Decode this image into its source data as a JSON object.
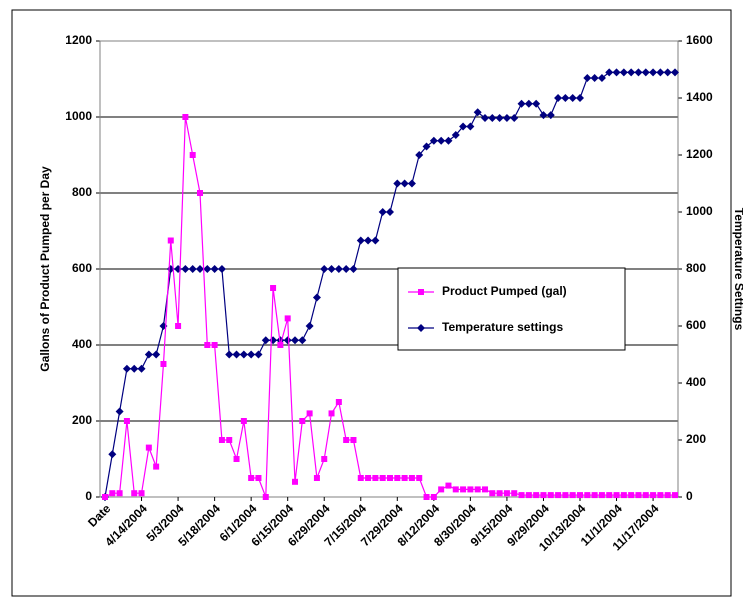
{
  "chart_data": {
    "type": "line",
    "y_label": "Gallons of Product Pumped per  Day",
    "y2_label": "Temperature Settings",
    "categories": [
      "Date",
      null,
      null,
      null,
      null,
      "4/14/2004",
      null,
      null,
      null,
      null,
      "5/3/2004",
      null,
      null,
      null,
      null,
      "5/18/2004",
      null,
      null,
      null,
      null,
      "6/1/2004",
      null,
      null,
      null,
      null,
      "6/15/2004",
      null,
      null,
      null,
      null,
      "6/29/2004",
      null,
      null,
      null,
      null,
      "7/15/2004",
      null,
      null,
      null,
      null,
      "7/29/2004",
      null,
      null,
      null,
      null,
      "8/12/2004",
      null,
      null,
      null,
      null,
      "8/30/2004",
      null,
      null,
      null,
      null,
      "9/15/2004",
      null,
      null,
      null,
      null,
      "9/29/2004",
      null,
      null,
      null,
      null,
      "10/13/2004",
      null,
      null,
      null,
      null,
      "11/1/2004",
      null,
      null,
      null,
      null,
      "11/17/2004",
      null,
      null,
      null
    ],
    "series": [
      {
        "name": "Product Pumped (gal)",
        "color": "#ff00ff",
        "marker": "square",
        "values": [
          0,
          10,
          10,
          200,
          10,
          10,
          130,
          80,
          350,
          675,
          450,
          1000,
          900,
          800,
          400,
          400,
          150,
          150,
          100,
          200,
          50,
          50,
          0,
          550,
          400,
          470,
          40,
          200,
          220,
          50,
          100,
          220,
          250,
          150,
          150,
          50,
          50,
          50,
          50,
          50,
          50,
          50,
          50,
          50,
          0,
          0,
          20,
          30,
          20,
          20,
          20,
          20,
          20,
          10,
          10,
          10,
          10,
          5,
          5,
          5,
          5,
          5,
          5,
          5,
          5,
          5,
          5,
          5,
          5,
          5,
          5,
          5,
          5,
          5,
          5,
          5,
          5,
          5,
          5
        ]
      },
      {
        "name": "Temperature settings",
        "color": "#000080",
        "marker": "diamond",
        "axis": "y2",
        "values": [
          0,
          150,
          300,
          450,
          450,
          450,
          500,
          500,
          600,
          800,
          800,
          800,
          800,
          800,
          800,
          800,
          800,
          500,
          500,
          500,
          500,
          500,
          550,
          550,
          550,
          550,
          550,
          550,
          600,
          700,
          800,
          800,
          800,
          800,
          800,
          900,
          900,
          900,
          1000,
          1000,
          1100,
          1100,
          1100,
          1200,
          1230,
          1250,
          1250,
          1250,
          1270,
          1300,
          1300,
          1350,
          1330,
          1330,
          1330,
          1330,
          1330,
          1380,
          1380,
          1380,
          1340,
          1340,
          1400,
          1400,
          1400,
          1400,
          1470,
          1470,
          1470,
          1490,
          1490,
          1490,
          1490,
          1490,
          1490,
          1490,
          1490,
          1490,
          1490
        ]
      }
    ],
    "ylim": [
      0,
      1200
    ],
    "yticks": [
      0,
      200,
      400,
      600,
      800,
      1000,
      1200
    ],
    "y2lim": [
      0,
      1600
    ],
    "y2ticks": [
      0,
      200,
      400,
      600,
      800,
      1000,
      1200,
      1400,
      1600
    ],
    "grid": true,
    "legend": "center-right"
  }
}
